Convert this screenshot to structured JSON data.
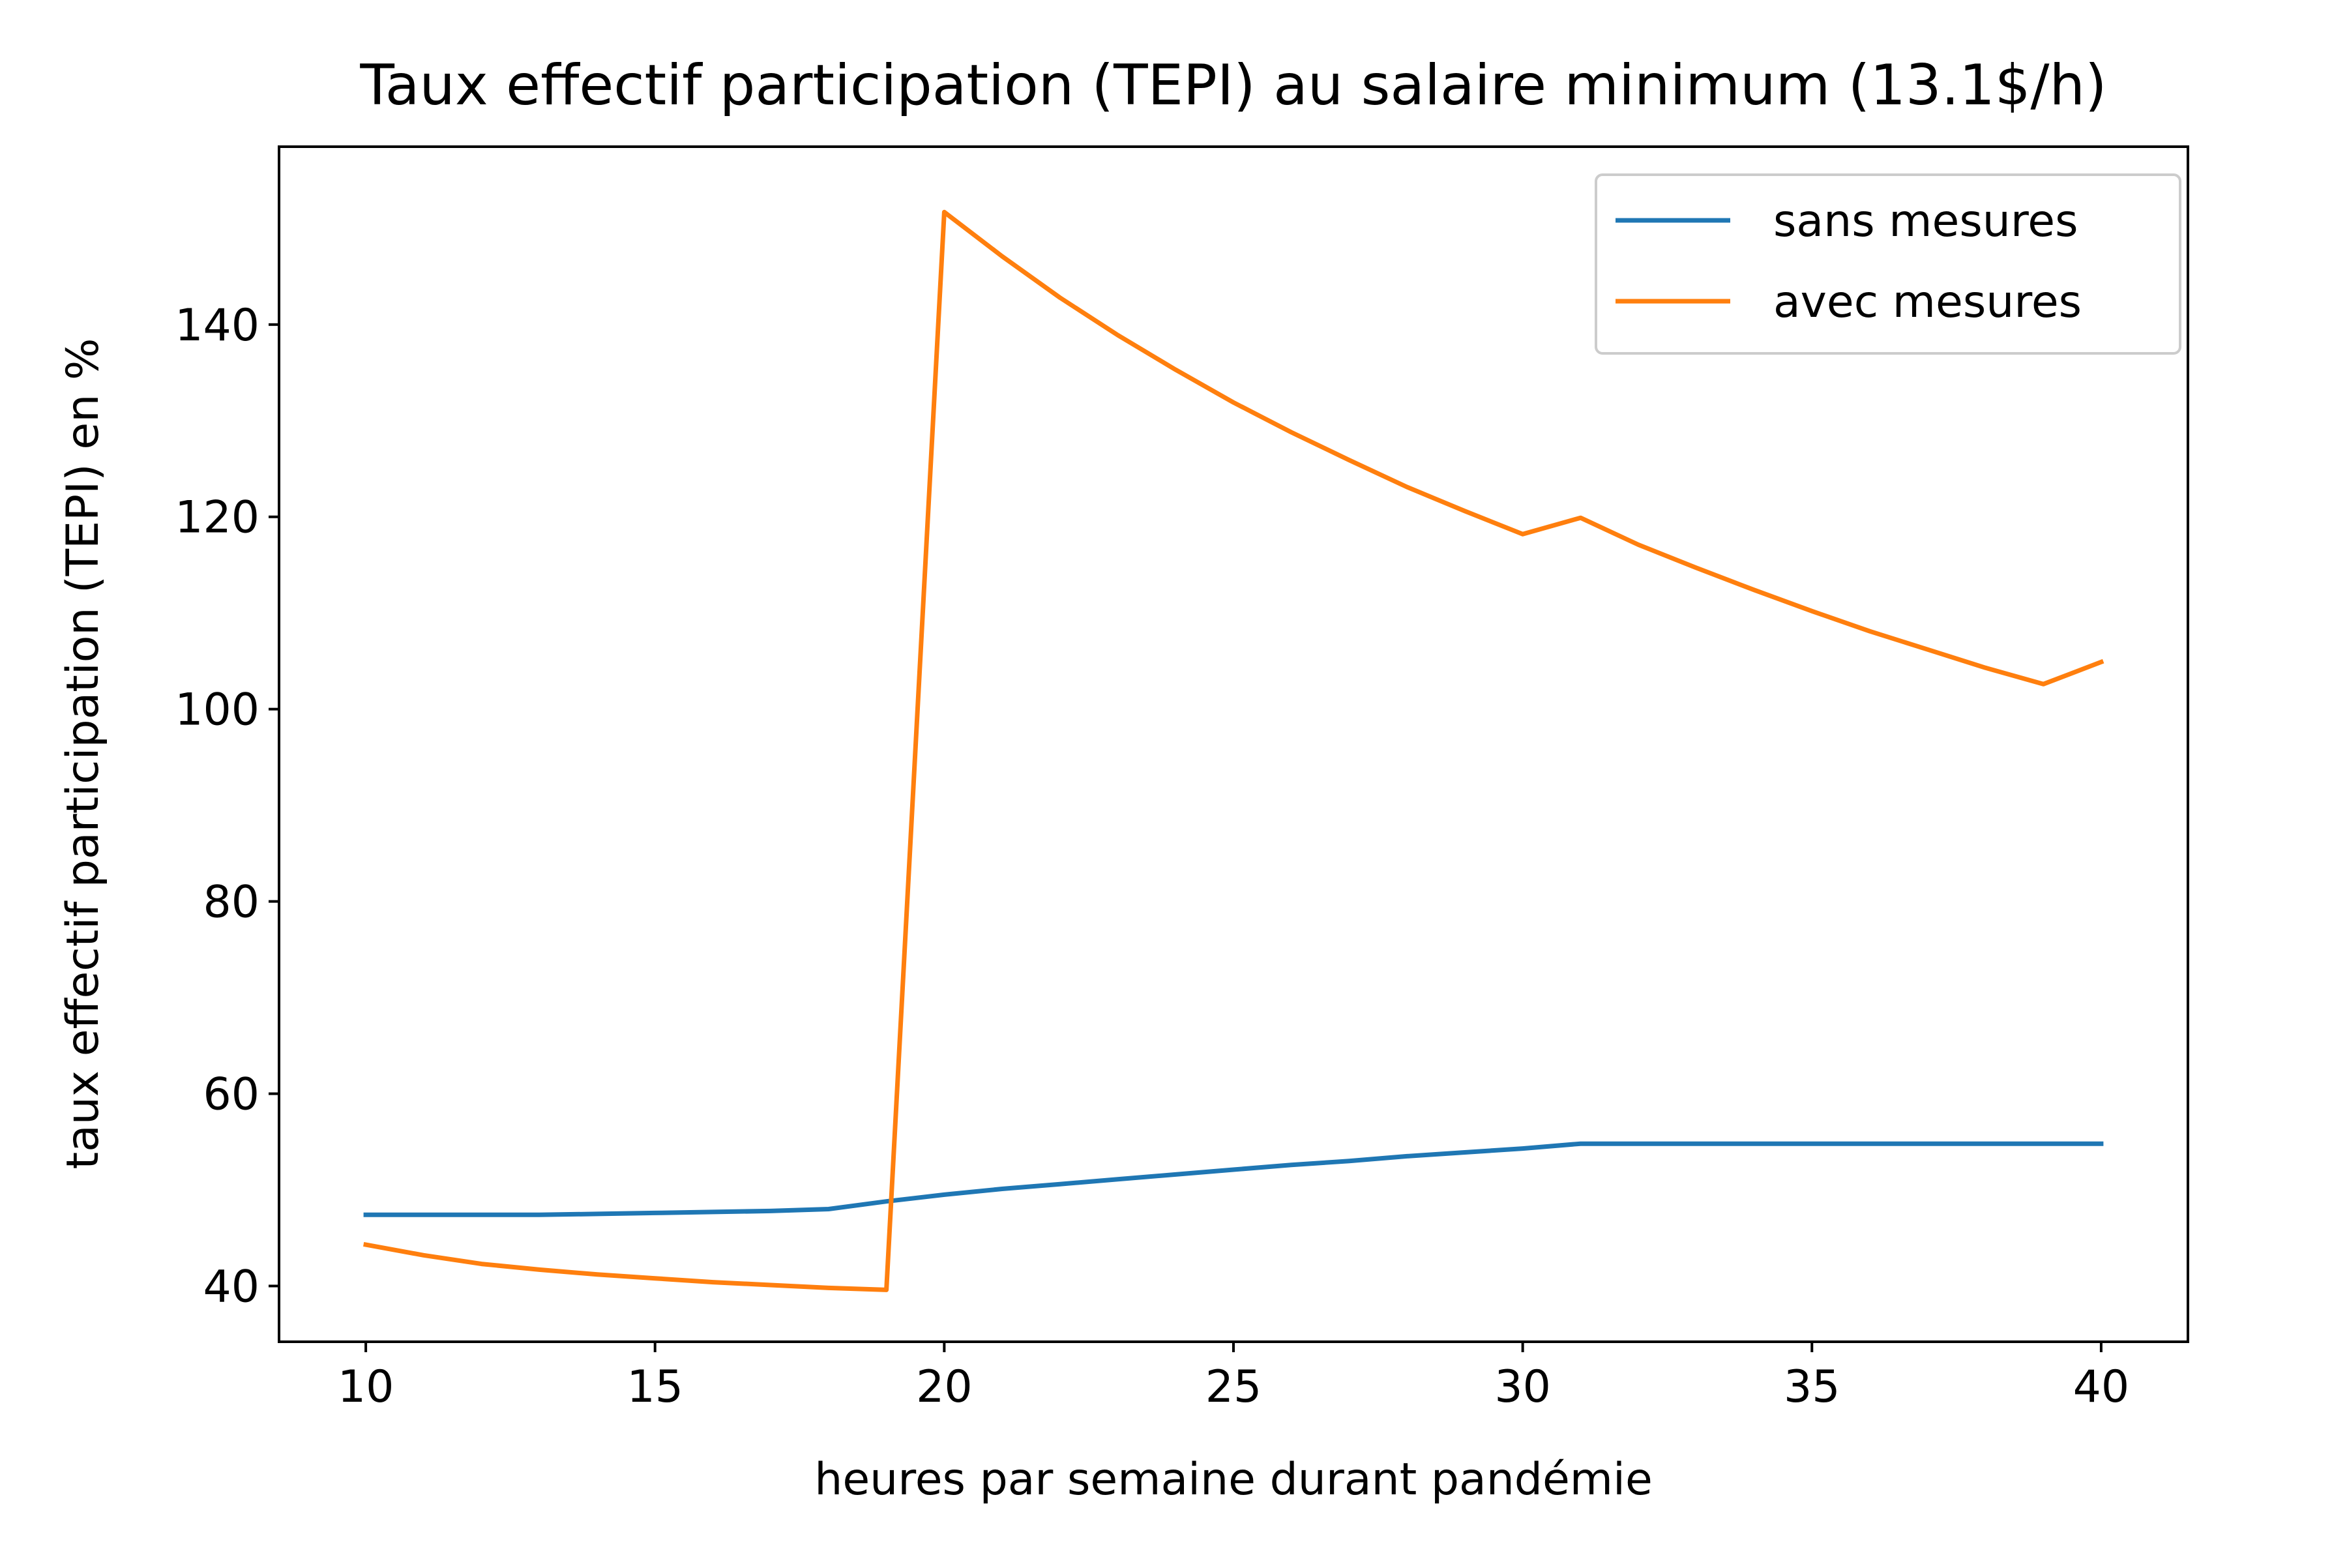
{
  "chart_data": {
    "type": "line",
    "title": "Taux effectif participation (TEPI) au salaire minimum (13.1$/h)",
    "xlabel": "heures par semaine durant pandémie",
    "ylabel": "taux effectif participation (TEPI) en %",
    "xlim": [
      8.5,
      41.5
    ],
    "ylim": [
      34.2,
      158.5
    ],
    "xticks": [
      10,
      15,
      20,
      25,
      30,
      35,
      40
    ],
    "yticks": [
      40,
      60,
      80,
      100,
      120,
      140
    ],
    "grid": false,
    "legend_position": "top-right",
    "x": [
      10,
      11,
      12,
      13,
      14,
      15,
      16,
      17,
      18,
      19,
      20,
      21,
      22,
      23,
      24,
      25,
      26,
      27,
      28,
      29,
      30,
      31,
      32,
      33,
      34,
      35,
      36,
      37,
      38,
      39,
      40
    ],
    "series": [
      {
        "name": "sans mesures",
        "color": "#1f77b4",
        "values": [
          47.4,
          47.4,
          47.4,
          47.4,
          47.5,
          47.6,
          47.7,
          47.8,
          48.0,
          48.8,
          49.5,
          50.1,
          50.6,
          51.1,
          51.6,
          52.1,
          52.6,
          53.0,
          53.5,
          53.9,
          54.3,
          54.8,
          54.8,
          54.8,
          54.8,
          54.8,
          54.8,
          54.8,
          54.8,
          54.8,
          54.8
        ]
      },
      {
        "name": "avec mesures",
        "color": "#ff7f0e",
        "values": [
          44.3,
          43.2,
          42.3,
          41.7,
          41.2,
          40.8,
          40.4,
          40.1,
          39.8,
          39.6,
          151.7,
          147.1,
          142.8,
          138.9,
          135.3,
          131.9,
          128.8,
          125.9,
          123.1,
          120.6,
          118.2,
          119.9,
          117.1,
          114.7,
          112.4,
          110.2,
          108.1,
          106.2,
          104.3,
          102.6,
          104.9
        ]
      }
    ]
  }
}
